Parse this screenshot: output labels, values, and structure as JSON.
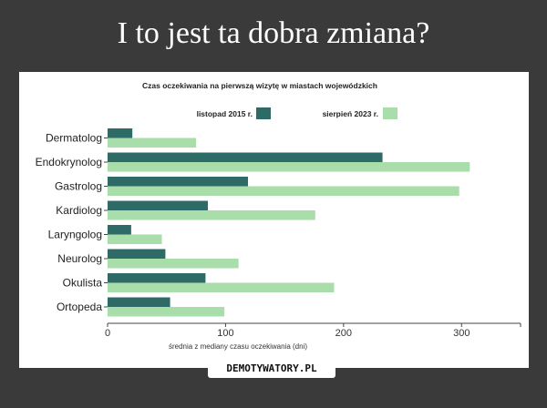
{
  "page": {
    "title": "I to jest ta dobra zmiana?",
    "watermark": "DEMOTYWATORY.PL"
  },
  "chart_data": {
    "type": "bar",
    "orientation": "horizontal",
    "title": "Czas oczekiwania na pierwszą wizytę w miastach wojewódzkich",
    "xlabel": "średnia z mediany czasu oczekiwania (dni)",
    "ylabel": "",
    "xlim": [
      0,
      350
    ],
    "xticks": [
      0,
      100,
      200,
      300
    ],
    "legend_position": "top-center",
    "grid": false,
    "categories": [
      "Dermatolog",
      "Endokrynolog",
      "Gastrolog",
      "Kardiolog",
      "Laryngolog",
      "Neurolog",
      "Okulista",
      "Ortopeda"
    ],
    "series": [
      {
        "name": "listopad 2015 r.",
        "color": "#2e6b67",
        "values": [
          21,
          233,
          119,
          85,
          20,
          49,
          83,
          53
        ]
      },
      {
        "name": "sierpień 2023 r.",
        "color": "#a9deab",
        "values": [
          75,
          307,
          298,
          176,
          46,
          111,
          192,
          99
        ]
      }
    ]
  }
}
